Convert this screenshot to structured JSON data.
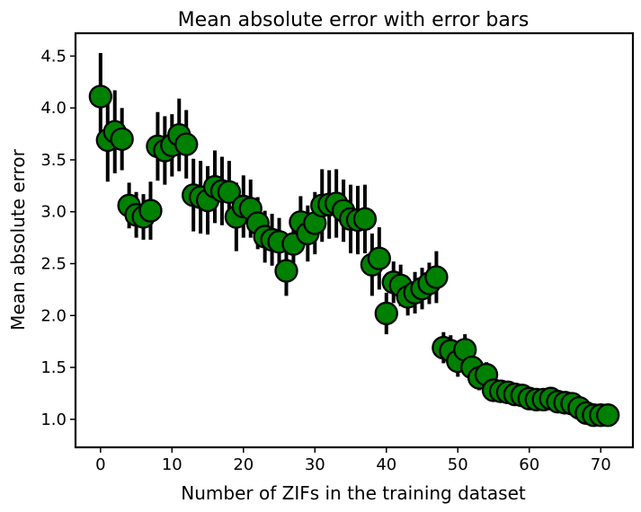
{
  "chart_data": {
    "type": "scatter",
    "title": "Mean absolute error with error bars",
    "xlabel": "Number of ZIFs in the training dataset",
    "ylabel": "Mean absolute error",
    "xlim": [
      -3.5,
      74.5
    ],
    "ylim": [
      0.73,
      4.72
    ],
    "xticks": [
      0,
      10,
      20,
      30,
      40,
      50,
      60,
      70
    ],
    "yticks": [
      1.0,
      1.5,
      2.0,
      2.5,
      3.0,
      3.5,
      4.0,
      4.5
    ],
    "ytick_labels": [
      "1.0",
      "1.5",
      "2.0",
      "2.5",
      "3.0",
      "3.5",
      "4.0",
      "4.5"
    ],
    "grid": false,
    "marker_color": "#008000",
    "marker_edge_color": "#000000",
    "errorbar_color": "#000000",
    "series": [
      {
        "x": [
          0,
          1,
          2,
          3,
          4,
          5,
          6,
          7,
          8,
          9,
          10,
          11,
          12,
          13,
          14,
          15,
          16,
          17,
          18,
          19,
          20,
          21,
          22,
          23,
          24,
          25,
          26,
          27,
          28,
          29,
          30,
          31,
          32,
          33,
          34,
          35,
          36,
          37,
          38,
          39,
          40,
          41,
          42,
          43,
          44,
          45,
          46,
          47,
          48,
          49,
          50,
          51,
          52,
          53,
          54,
          55,
          56,
          57,
          58,
          59,
          60,
          61,
          62,
          63,
          64,
          65,
          66,
          67,
          68,
          69,
          70,
          71
        ],
        "y": [
          4.11,
          3.69,
          3.77,
          3.7,
          3.06,
          2.97,
          2.95,
          3.01,
          3.63,
          3.59,
          3.64,
          3.74,
          3.65,
          3.16,
          3.14,
          3.11,
          3.24,
          3.2,
          3.19,
          2.95,
          3.05,
          3.03,
          2.89,
          2.76,
          2.73,
          2.71,
          2.43,
          2.69,
          2.9,
          2.79,
          2.89,
          3.06,
          3.07,
          3.08,
          3.01,
          2.93,
          2.92,
          2.93,
          2.49,
          2.55,
          2.02,
          2.32,
          2.29,
          2.18,
          2.22,
          2.26,
          2.31,
          2.37,
          1.69,
          1.66,
          1.56,
          1.67,
          1.5,
          1.4,
          1.43,
          1.28,
          1.27,
          1.26,
          1.24,
          1.23,
          1.2,
          1.19,
          1.19,
          1.2,
          1.17,
          1.16,
          1.15,
          1.11,
          1.06,
          1.04,
          1.04,
          1.04
        ],
        "err": [
          0.42,
          0.4,
          0.4,
          0.3,
          0.22,
          0.22,
          0.22,
          0.28,
          0.33,
          0.33,
          0.3,
          0.35,
          0.33,
          0.35,
          0.35,
          0.33,
          0.35,
          0.33,
          0.3,
          0.33,
          0.3,
          0.28,
          0.25,
          0.25,
          0.25,
          0.23,
          0.24,
          0.24,
          0.25,
          0.27,
          0.3,
          0.35,
          0.33,
          0.33,
          0.3,
          0.33,
          0.33,
          0.33,
          0.3,
          0.3,
          0.2,
          0.2,
          0.2,
          0.18,
          0.2,
          0.2,
          0.2,
          0.25,
          0.15,
          0.15,
          0.15,
          0.15,
          0.12,
          0.12,
          0.12,
          0.1,
          0.1,
          0.08,
          0.08,
          0.08,
          0.08,
          0.08,
          0.08,
          0.08,
          0.08,
          0.08,
          0.07,
          0.07,
          0.06,
          0.06,
          0.06,
          0.06
        ]
      }
    ]
  }
}
